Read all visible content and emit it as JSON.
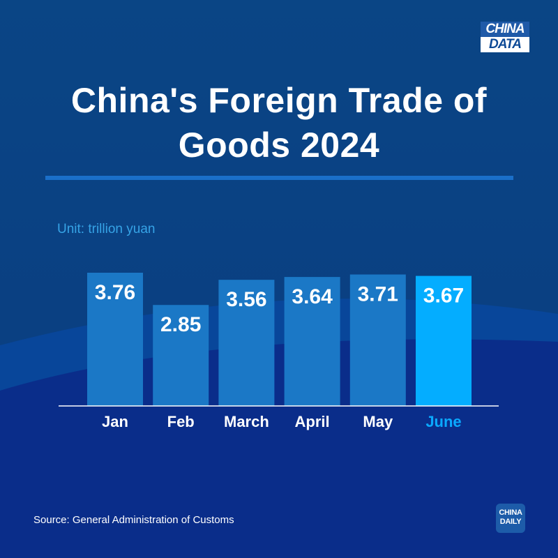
{
  "badge": {
    "line1": "CHINA",
    "line2": "DATA"
  },
  "title": "China's Foreign Trade of Goods 2024",
  "unit_label": "Unit: trillion yuan",
  "source": "Source: General Administration of Customs",
  "logo": {
    "line1": "CHINA",
    "line2": "DAILY"
  },
  "colors": {
    "background_top": "#0a4585",
    "background_bottom": "#0a2d8a",
    "bar": "#1b78c6",
    "bar_highlight": "#04adff",
    "label_highlight": "#0aa9ff",
    "accent_rule": "#1a6fc9",
    "unit_text": "#36a3e6"
  },
  "chart_data": {
    "type": "bar",
    "title": "China's Foreign Trade of Goods 2024",
    "ylabel": "Unit: trillion yuan",
    "categories": [
      "Jan",
      "Feb",
      "March",
      "April",
      "May",
      "June"
    ],
    "values": [
      3.76,
      2.85,
      3.56,
      3.64,
      3.71,
      3.67
    ],
    "data_labels": [
      "3.76",
      "2.85",
      "3.56",
      "3.64",
      "3.71",
      "3.67"
    ],
    "highlight": "June",
    "ylim": [
      0,
      3.76
    ],
    "grid": false,
    "legend": "none"
  }
}
